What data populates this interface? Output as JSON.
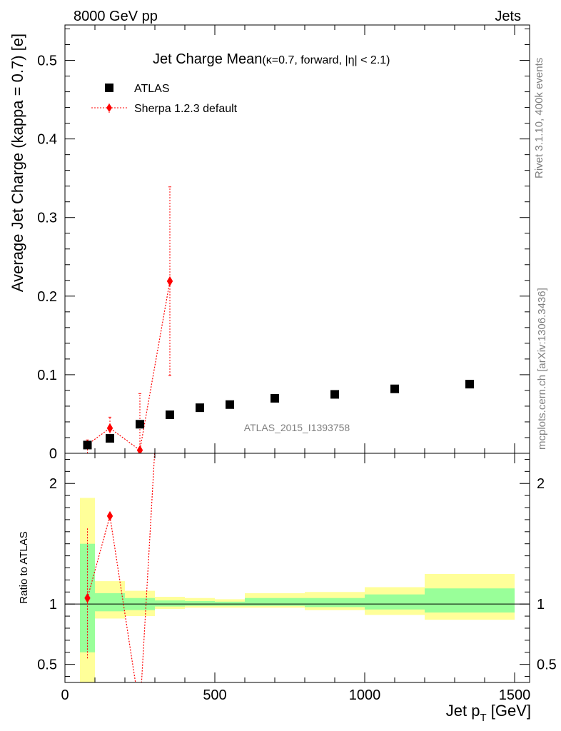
{
  "header": {
    "left": "8000 GeV pp",
    "right": "Jets"
  },
  "side_labels": {
    "rivet": "Rivet 3.1.10,  400k events",
    "mcplots": "mcplots.cern.ch [arXiv:1306.3436]"
  },
  "chart_data": {
    "type": "scatter",
    "title": "Jet Charge Mean",
    "title_detail": "(κ=0.7, forward, |η| < 2.1)",
    "xlabel": "Jet p",
    "xlabel_sub": "T",
    "xlabel_unit": " [GeV]",
    "ylabel": "Average Jet Charge (kappa = 0.7) [e]",
    "ratio_ylabel": "Ratio to ATLAS",
    "analysis_label": "ATLAS_2015_I1393758",
    "xlim": [
      0,
      1550
    ],
    "ylim": [
      0,
      0.545
    ],
    "ratio_ylim": [
      0.35,
      2.25
    ],
    "x_ticks": [
      0,
      500,
      1000,
      1500
    ],
    "y_ticks": [
      0,
      0.1,
      0.2,
      0.3,
      0.4,
      0.5
    ],
    "y_tick_labels": [
      "0",
      "0.1",
      "0.2",
      "0.3",
      "0.4",
      "0.5"
    ],
    "ratio_ticks": [
      0.5,
      1,
      2
    ],
    "ratio_tick_labels": [
      "0.5",
      "1",
      "2"
    ],
    "legend_position": "top-left",
    "series": [
      {
        "name": "ATLAS",
        "color": "#000000",
        "marker": "square",
        "points": [
          {
            "x": 75,
            "y": 0.0105
          },
          {
            "x": 150,
            "y": 0.019
          },
          {
            "x": 250,
            "y": 0.037
          },
          {
            "x": 350,
            "y": 0.049
          },
          {
            "x": 450,
            "y": 0.058
          },
          {
            "x": 550,
            "y": 0.062
          },
          {
            "x": 700,
            "y": 0.07
          },
          {
            "x": 900,
            "y": 0.075
          },
          {
            "x": 1100,
            "y": 0.082
          },
          {
            "x": 1350,
            "y": 0.088
          }
        ]
      },
      {
        "name": "Sherpa 1.2.3 default",
        "color": "#ff0000",
        "marker": "diamond",
        "points": [
          {
            "x": 75,
            "y": 0.011,
            "ylo": 0.0,
            "yhi": 0.017
          },
          {
            "x": 150,
            "y": 0.032,
            "ylo": 0.018,
            "yhi": 0.046
          },
          {
            "x": 250,
            "y": 0.004,
            "ylo": 0.0,
            "yhi": 0.076
          },
          {
            "x": 350,
            "y": 0.219,
            "ylo": 0.099,
            "yhi": 0.339
          }
        ]
      }
    ],
    "ratio_bands": [
      {
        "x0": 50,
        "x1": 100,
        "y_lo": 0.35,
        "y_hi": 1.88,
        "g_lo": 0.6,
        "g_hi": 1.5
      },
      {
        "x0": 100,
        "x1": 200,
        "y_lo": 0.88,
        "y_hi": 1.19,
        "g_lo": 0.94,
        "g_hi": 1.09
      },
      {
        "x0": 200,
        "x1": 300,
        "y_lo": 0.9,
        "y_hi": 1.11,
        "g_lo": 0.95,
        "g_hi": 1.05
      },
      {
        "x0": 300,
        "x1": 400,
        "y_lo": 0.96,
        "y_hi": 1.06,
        "g_lo": 0.98,
        "g_hi": 1.03
      },
      {
        "x0": 400,
        "x1": 500,
        "y_lo": 0.97,
        "y_hi": 1.05,
        "g_lo": 0.985,
        "g_hi": 1.025
      },
      {
        "x0": 500,
        "x1": 600,
        "y_lo": 0.97,
        "y_hi": 1.04,
        "g_lo": 0.985,
        "g_hi": 1.02
      },
      {
        "x0": 600,
        "x1": 800,
        "y_lo": 0.97,
        "y_hi": 1.09,
        "g_lo": 0.985,
        "g_hi": 1.05
      },
      {
        "x0": 800,
        "x1": 1000,
        "y_lo": 0.95,
        "y_hi": 1.1,
        "g_lo": 0.975,
        "g_hi": 1.05
      },
      {
        "x0": 1000,
        "x1": 1200,
        "y_lo": 0.91,
        "y_hi": 1.14,
        "g_lo": 0.955,
        "g_hi": 1.08
      },
      {
        "x0": 1200,
        "x1": 1500,
        "y_lo": 0.87,
        "y_hi": 1.25,
        "g_lo": 0.93,
        "g_hi": 1.13
      }
    ],
    "ratio_series": {
      "name": "Sherpa 1.2.3 default",
      "points": [
        {
          "x": 75,
          "y": 1.05,
          "ylo": 0.55,
          "yhi": 1.63
        },
        {
          "x": 150,
          "y": 1.73,
          "ylo": 2.4,
          "yhi": 2.4
        },
        {
          "x": 250,
          "y": 0.11
        },
        {
          "x": 350,
          "y": 4.47
        }
      ]
    },
    "band_colors": {
      "yellow": "#ffff99",
      "green": "#99ff99"
    }
  }
}
